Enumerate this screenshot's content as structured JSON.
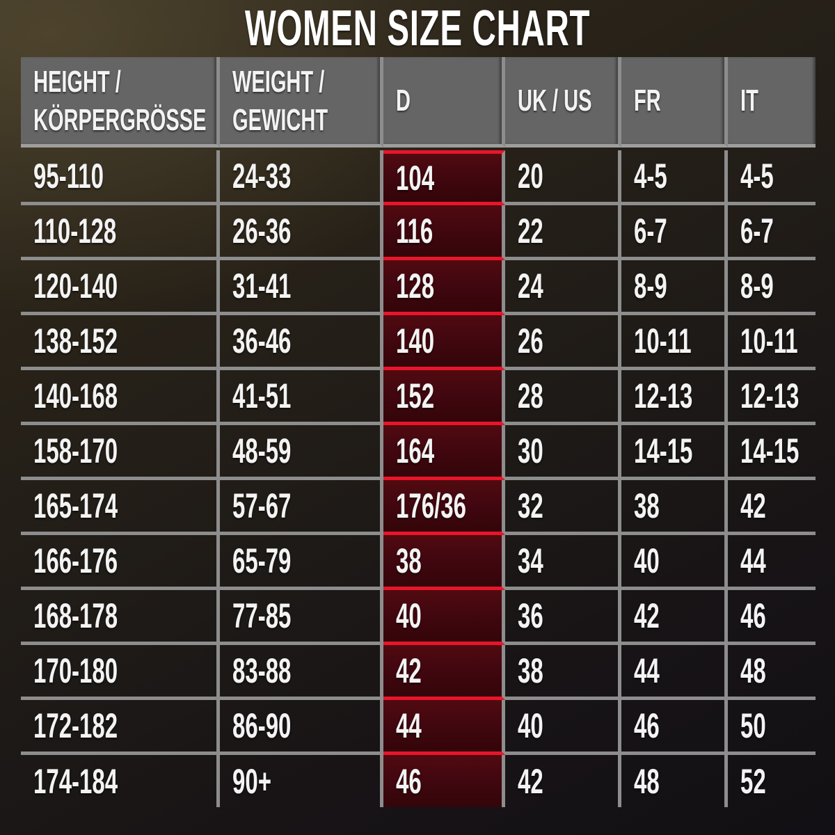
{
  "title": "WOMEN SIZE CHART",
  "colors": {
    "accent_red": "#e9152b",
    "highlight_cell_maroon": "#420710",
    "header_gray": "#656565",
    "divider_gray": "#8d8d8d",
    "text_white": "#f3f3f3"
  },
  "header": {
    "cells": [
      {
        "line1": "HEIGHT /",
        "line2": "KÖRPERGRÖSSE"
      },
      {
        "line1": "WEIGHT /",
        "line2": "GEWICHT"
      },
      {
        "line1": "D",
        "line2": ""
      },
      {
        "line1": "UK / US",
        "line2": ""
      },
      {
        "line1": "FR",
        "line2": ""
      },
      {
        "line1": "IT",
        "line2": ""
      }
    ]
  },
  "chart_data": {
    "type": "table",
    "title": "WOMEN SIZE CHART",
    "columns": [
      "HEIGHT / KÖRPERGRÖSSE",
      "WEIGHT / GEWICHT",
      "D",
      "UK / US",
      "FR",
      "IT"
    ],
    "highlight_column": "D",
    "rows": [
      [
        "95-110",
        "24-33",
        "104",
        "20",
        "4-5",
        "4-5"
      ],
      [
        "110-128",
        "26-36",
        "116",
        "22",
        "6-7",
        "6-7"
      ],
      [
        "120-140",
        "31-41",
        "128",
        "24",
        "8-9",
        "8-9"
      ],
      [
        "138-152",
        "36-46",
        "140",
        "26",
        "10-11",
        "10-11"
      ],
      [
        "140-168",
        "41-51",
        "152",
        "28",
        "12-13",
        "12-13"
      ],
      [
        "158-170",
        "48-59",
        "164",
        "30",
        "14-15",
        "14-15"
      ],
      [
        "165-174",
        "57-67",
        "176/36",
        "32",
        "38",
        "42"
      ],
      [
        "166-176",
        "65-79",
        "38",
        "34",
        "40",
        "44"
      ],
      [
        "168-178",
        "77-85",
        "40",
        "36",
        "42",
        "46"
      ],
      [
        "170-180",
        "83-88",
        "42",
        "38",
        "44",
        "48"
      ],
      [
        "172-182",
        "86-90",
        "44",
        "40",
        "46",
        "50"
      ],
      [
        "174-184",
        "90+",
        "46",
        "42",
        "48",
        "52"
      ]
    ]
  }
}
